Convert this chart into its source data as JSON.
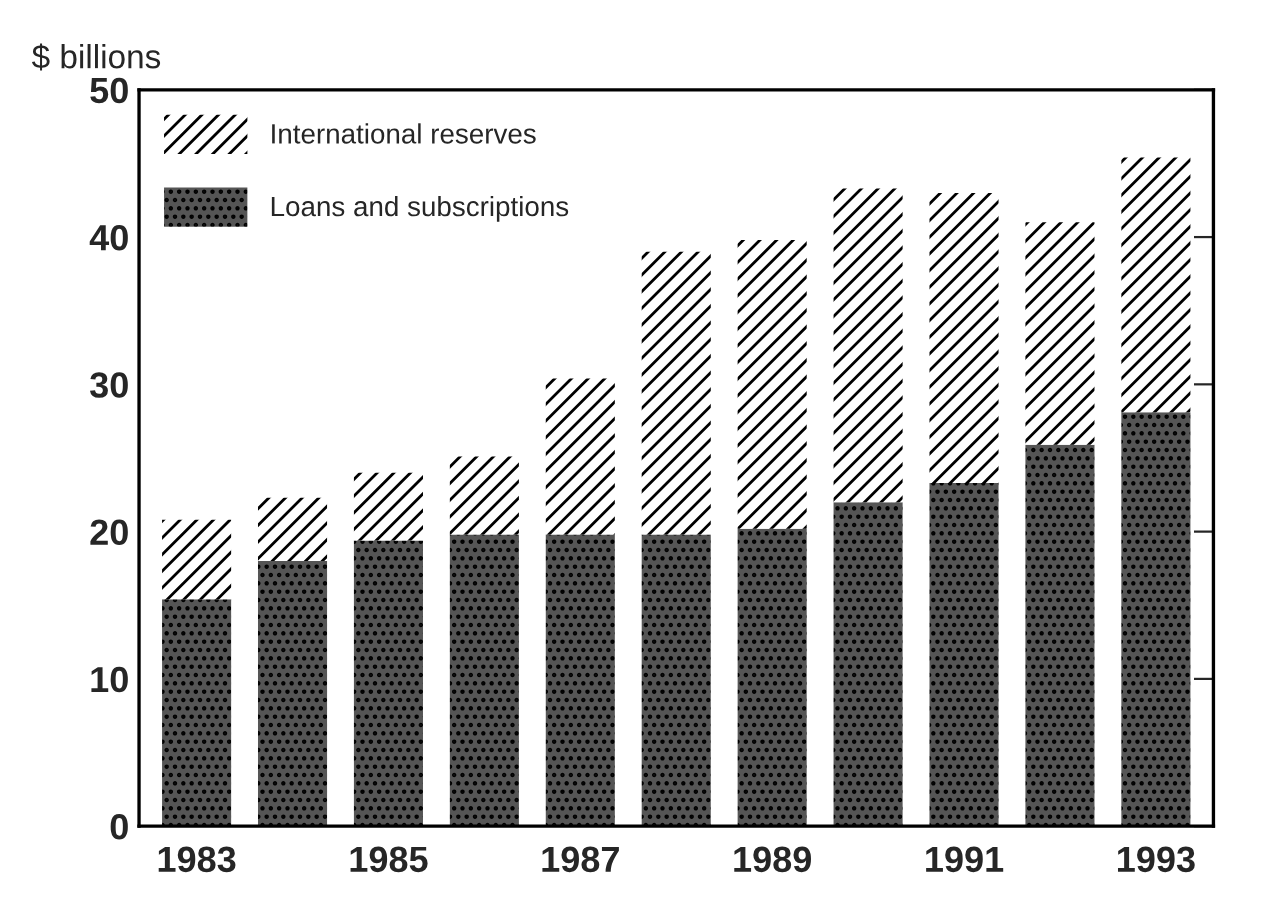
{
  "chart_data": {
    "type": "bar",
    "ylabel": "$ billions",
    "stacked": true,
    "legend": "top left",
    "grid": false,
    "categories": [
      "1983",
      null,
      "1985",
      null,
      "1987",
      null,
      "1989",
      null,
      "1991",
      null,
      "1993"
    ],
    "ylim": [
      0,
      50
    ],
    "yticks": [
      0,
      10,
      20,
      30,
      40,
      50
    ],
    "series": [
      {
        "name": "Loans and subscriptions",
        "color": "#555555",
        "values": [
          15.4,
          18.0,
          19.4,
          19.8,
          19.8,
          19.8,
          20.2,
          22.0,
          23.3,
          25.9,
          28.1
        ]
      },
      {
        "name": "International reserves",
        "color": "#ffffff",
        "values": [
          5.4,
          4.3,
          4.6,
          5.3,
          10.6,
          19.2,
          19.6,
          21.3,
          19.7,
          15.1,
          17.3
        ]
      }
    ]
  }
}
